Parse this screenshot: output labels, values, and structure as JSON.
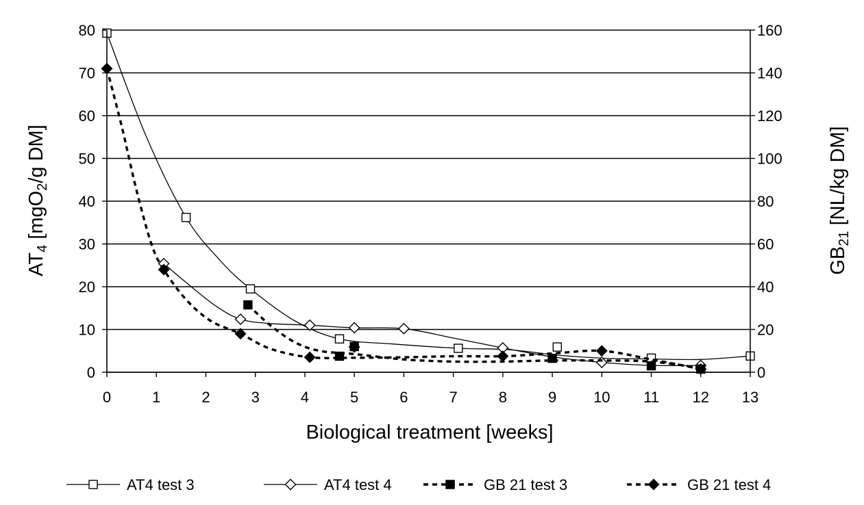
{
  "chart_data": {
    "type": "line",
    "xlabel": "Biological treatment [weeks]",
    "ylabel_left": {
      "main": "AT",
      "sub": "4",
      "unit_pre": " [mgO",
      "unit_sub": "2",
      "unit_post": "/g DM]"
    },
    "ylabel_right": {
      "main": "GB",
      "sub": "21",
      "unit": " [NL/kg DM]"
    },
    "xlim": [
      0,
      13
    ],
    "x_ticks": [
      "0",
      "1",
      "2",
      "3",
      "4",
      "5",
      "6",
      "7",
      "8",
      "9",
      "10",
      "11",
      "12",
      "13"
    ],
    "ylim_left": [
      0,
      80
    ],
    "y_ticks_left": [
      "0",
      "10",
      "20",
      "30",
      "40",
      "50",
      "60",
      "70",
      "80"
    ],
    "ylim_right": [
      0,
      160
    ],
    "y_ticks_right": [
      "0",
      "20",
      "40",
      "60",
      "80",
      "100",
      "120",
      "140",
      "160"
    ],
    "grid": true,
    "legend_position": "bottom",
    "series": [
      {
        "name": "AT4 test 3",
        "axis": "left",
        "marker": "square-open",
        "line": "solid",
        "points": [
          [
            0,
            79.3
          ],
          [
            1.6,
            36.2
          ],
          [
            2.9,
            19.5
          ],
          [
            4.7,
            7.8
          ],
          [
            7.1,
            5.6
          ],
          [
            9.1,
            5.9
          ],
          [
            11.0,
            3.3
          ],
          [
            13.0,
            3.8
          ]
        ],
        "trend": [
          [
            0,
            79.3
          ],
          [
            0.8,
            55
          ],
          [
            1.6,
            36.2
          ],
          [
            2.3,
            26
          ],
          [
            2.9,
            19.5
          ],
          [
            3.8,
            12
          ],
          [
            4.7,
            7.8
          ],
          [
            5.8,
            6.6
          ],
          [
            7.1,
            5.6
          ],
          [
            8.1,
            5.3
          ],
          [
            9.1,
            4.0
          ],
          [
            10.0,
            3.3
          ],
          [
            11.0,
            3.1
          ],
          [
            12.0,
            3.0
          ],
          [
            13.0,
            3.8
          ]
        ]
      },
      {
        "name": "AT4 test 4",
        "axis": "left",
        "marker": "diamond-open",
        "line": "solid",
        "points": [
          [
            1.15,
            25.4
          ],
          [
            2.7,
            12.4
          ],
          [
            4.1,
            11.0
          ],
          [
            5.0,
            10.4
          ],
          [
            6.0,
            10.2
          ],
          [
            8.0,
            5.7
          ],
          [
            10.0,
            2.3
          ],
          [
            12.0,
            1.6
          ]
        ],
        "trend": [
          [
            1.15,
            25.4
          ],
          [
            1.6,
            21
          ],
          [
            2.2,
            15.5
          ],
          [
            2.7,
            12.4
          ],
          [
            3.3,
            11.4
          ],
          [
            4.1,
            11.0
          ],
          [
            5.0,
            10.4
          ],
          [
            6.0,
            10.2
          ],
          [
            7.0,
            8.0
          ],
          [
            8.0,
            5.7
          ],
          [
            9.0,
            3.6
          ],
          [
            10.0,
            2.3
          ],
          [
            11.0,
            1.6
          ],
          [
            12.0,
            1.6
          ]
        ]
      },
      {
        "name": "GB 21 test 3",
        "axis": "right",
        "marker": "square-filled",
        "line": "dashed",
        "points": [
          [
            2.85,
            31.5
          ],
          [
            4.7,
            7.5
          ],
          [
            5.0,
            12.0
          ],
          [
            9.0,
            6.5
          ],
          [
            11.0,
            3.0
          ],
          [
            12.0,
            1.5
          ]
        ],
        "trend": [
          [
            2.85,
            31.5
          ],
          [
            3.3,
            22
          ],
          [
            3.8,
            14
          ],
          [
            4.3,
            10
          ],
          [
            5.0,
            8.5
          ],
          [
            6.0,
            6.0
          ],
          [
            7.0,
            5.0
          ],
          [
            8.0,
            5.0
          ],
          [
            9.0,
            5.5
          ],
          [
            10.0,
            5.5
          ],
          [
            11.0,
            5.0
          ],
          [
            12.0,
            2.0
          ]
        ]
      },
      {
        "name": "GB 21 test 4",
        "axis": "right",
        "marker": "diamond-filled",
        "line": "dashed",
        "points": [
          [
            0,
            142.0
          ],
          [
            1.15,
            48.0
          ],
          [
            2.7,
            18.0
          ],
          [
            4.1,
            7.0
          ],
          [
            5.0,
            11.8
          ],
          [
            8.0,
            7.5
          ],
          [
            10.0,
            10.0
          ],
          [
            12.0,
            1.5
          ]
        ],
        "trend": [
          [
            0,
            142.0
          ],
          [
            0.3,
            115
          ],
          [
            0.6,
            85
          ],
          [
            0.9,
            60
          ],
          [
            1.15,
            48.0
          ],
          [
            1.6,
            34
          ],
          [
            2.1,
            24
          ],
          [
            2.7,
            18.0
          ],
          [
            3.3,
            11
          ],
          [
            4.1,
            7.0
          ],
          [
            5.0,
            6.8
          ],
          [
            6.0,
            7.0
          ],
          [
            7.0,
            7.5
          ],
          [
            8.0,
            7.5
          ],
          [
            9.0,
            8.8
          ],
          [
            10.0,
            10.0
          ],
          [
            11.0,
            6.0
          ],
          [
            12.0,
            1.5
          ]
        ]
      }
    ]
  }
}
